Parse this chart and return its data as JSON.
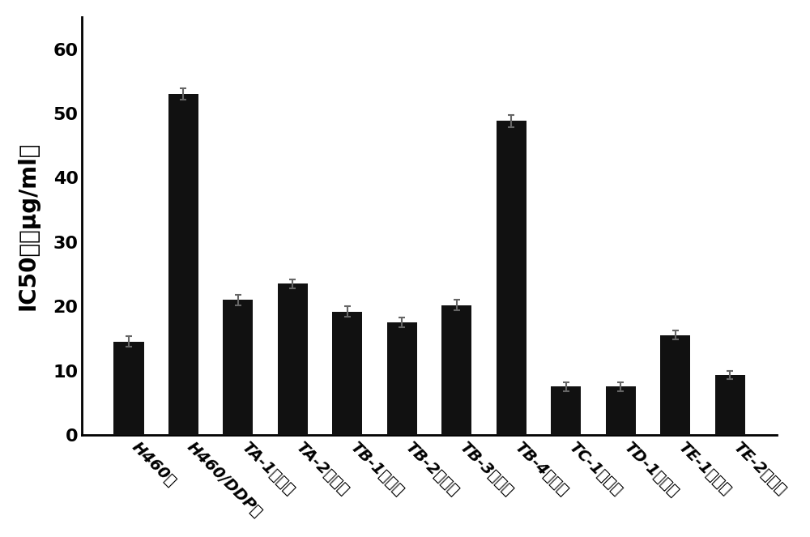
{
  "categories": [
    "H460组",
    "H460/DDP组",
    "TA-1给药组",
    "TA-2给药组",
    "TB-1给药组",
    "TB-2给药组",
    "TB-3给药组",
    "TB-4给药组",
    "TC-1给药组",
    "TD-1给药组",
    "TE-1给药组",
    "TE-2给药组"
  ],
  "values": [
    14.5,
    53.0,
    21.0,
    23.5,
    19.2,
    17.5,
    20.2,
    48.8,
    7.5,
    7.5,
    15.5,
    9.3
  ],
  "errors": [
    0.8,
    0.9,
    0.8,
    0.7,
    0.8,
    0.7,
    0.8,
    0.9,
    0.7,
    0.7,
    0.7,
    0.6
  ],
  "bar_color": "#111111",
  "error_color": "#666666",
  "ylabel": "IC50値（μg/ml）",
  "ylim": [
    0,
    65
  ],
  "yticks": [
    0,
    10,
    20,
    30,
    40,
    50,
    60
  ],
  "background_color": "#ffffff",
  "ylabel_fontsize": 20,
  "tick_fontsize": 14,
  "ytick_fontsize": 16,
  "xlabel_rotation": -45,
  "bar_width": 0.55
}
